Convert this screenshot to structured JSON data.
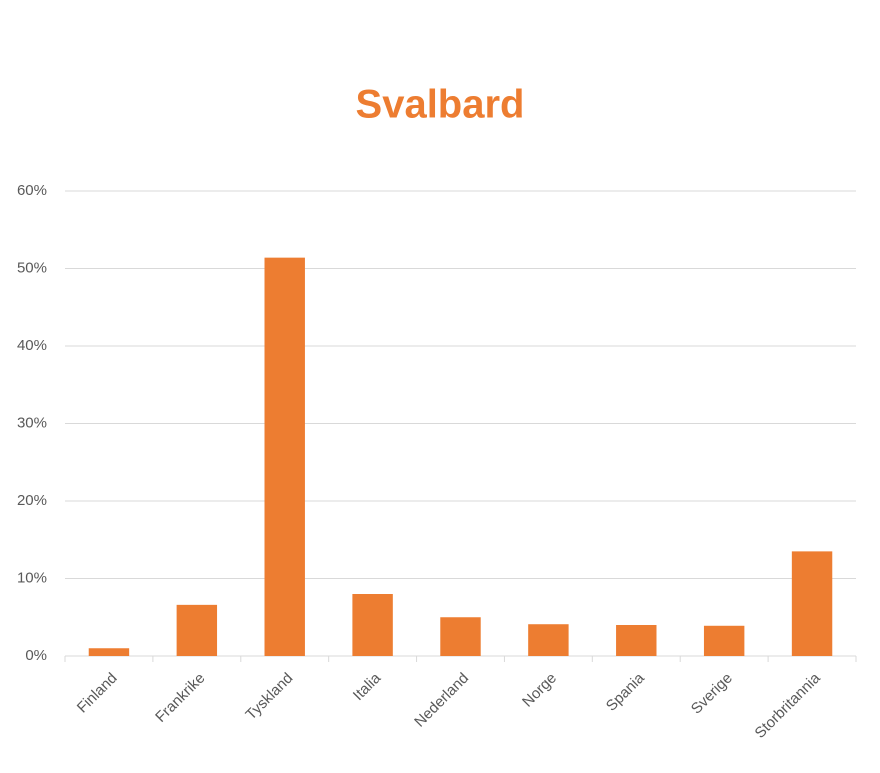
{
  "chart_data": {
    "type": "bar",
    "title": "Svalbard",
    "categories": [
      "Finland",
      "Frankrike",
      "Tyskland",
      "Italia",
      "Nederland",
      "Norge",
      "Spania",
      "Sverige",
      "Storbritannia"
    ],
    "values": [
      1.0,
      6.6,
      51.4,
      8.0,
      5.0,
      4.1,
      4.0,
      3.9,
      13.5
    ],
    "color": "#ed7d31",
    "ylim": [
      0,
      60
    ],
    "yticks": [
      {
        "value": 0,
        "label": "0%"
      },
      {
        "value": 10,
        "label": "10%"
      },
      {
        "value": 20,
        "label": "20%"
      },
      {
        "value": 30,
        "label": "30%"
      },
      {
        "value": 40,
        "label": "40%"
      },
      {
        "value": 50,
        "label": "50%"
      },
      {
        "value": 60,
        "label": "60%"
      }
    ],
    "grid": true
  }
}
